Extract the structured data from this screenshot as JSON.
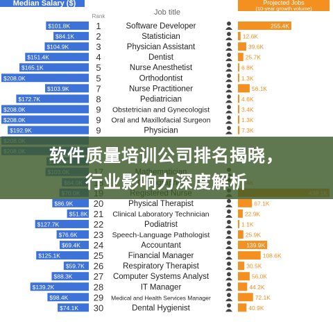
{
  "chart_data": {
    "type": "bar",
    "left_header": "Median Salary ($)",
    "rank_header": "Rank",
    "title_header": "Job title",
    "right_header_line1": "Projected Jobs",
    "right_header_line2": "(10-year growth volume)",
    "colors": {
      "salary": "#3d72d9",
      "jobs": "#f39020",
      "rank_text": "#333333"
    },
    "rows": [
      {
        "rank": "1",
        "title": "Software Developer",
        "salary": 101.8,
        "salary_label": "$101.8K",
        "jobs": 255.4,
        "jobs_label": "255.4K",
        "icon": "laptop-person-icon"
      },
      {
        "rank": "2",
        "title": "Statistician",
        "salary": 84.1,
        "salary_label": "$84.1K",
        "jobs": 12.6,
        "jobs_label": "12.6K",
        "icon": "person-icon"
      },
      {
        "rank": "3",
        "title": "Physician Assistant",
        "salary": 104.9,
        "salary_label": "$104.9K",
        "jobs": 39.6,
        "jobs_label": "39.6K",
        "icon": "doctor-icon"
      },
      {
        "rank": "4",
        "title": "Dentist",
        "salary": 151.4,
        "salary_label": "$151.4K",
        "jobs": 25.7,
        "jobs_label": "25.7K",
        "icon": "tooth-icon"
      },
      {
        "rank": "5",
        "title": "Nurse Anesthetist",
        "salary": 165.1,
        "salary_label": "$165.1K",
        "jobs": 6.8,
        "jobs_label": "6.8K",
        "icon": "nurse-icon"
      },
      {
        "rank": "5",
        "title": "Orthodontist",
        "salary": 208.0,
        "salary_label": "$208.0K",
        "jobs": 1.3,
        "jobs_label": "1.3K",
        "icon": "tooth-icon"
      },
      {
        "rank": "7",
        "title": "Nurse Practitioner",
        "salary": 103.9,
        "salary_label": "$103.9K",
        "jobs": 56.1,
        "jobs_label": "56.1K",
        "icon": "nurse-icon"
      },
      {
        "rank": "8",
        "title": "Pediatrician",
        "salary": 172.7,
        "salary_label": "$172.7K",
        "jobs": 4.6,
        "jobs_label": "4.6K",
        "icon": "doctor-icon"
      },
      {
        "rank": "9",
        "title": "Obstetrician and Gynecologist",
        "salary": 208.0,
        "salary_label": "$208.0K",
        "jobs": 3.4,
        "jobs_label": "3.4K",
        "icon": "doctor-icon"
      },
      {
        "rank": "9",
        "title": "Oral and Maxillofacial Surgeon",
        "salary": 208.0,
        "salary_label": "$208.0K",
        "jobs": 1.3,
        "jobs_label": "1.3K",
        "icon": "surgeon-icon"
      },
      {
        "rank": "9",
        "title": "Physician",
        "salary": 192.9,
        "salary_label": "$192.9K",
        "jobs": 7.3,
        "jobs_label": "7.3K",
        "icon": "doctor-icon"
      },
      {
        "rank": "",
        "title": "",
        "salary": 208.0,
        "salary_label": "$208.0K",
        "jobs": 0,
        "jobs_label": "",
        "icon": ""
      },
      {
        "rank": "",
        "title": "",
        "salary": 208.0,
        "salary_label": "$208.0K",
        "jobs": 0,
        "jobs_label": "",
        "icon": ""
      },
      {
        "rank": "",
        "title": "",
        "salary": 100.6,
        "salary_label": "$100.6K",
        "jobs": 0,
        "jobs_label": "",
        "icon": ""
      },
      {
        "rank": "17",
        "title": "Mathematician",
        "salary": 103.0,
        "salary_label": "$103.0K",
        "jobs": 0,
        "jobs_label": "",
        "icon": "person-icon"
      },
      {
        "rank": "18",
        "title": "Cartographer",
        "salary": 64.0,
        "salary_label": "$64.0K",
        "jobs": 2.4,
        "jobs_label": "2.4K",
        "icon": "map-icon"
      },
      {
        "rank": "19",
        "title": "Registered Nurse",
        "salary": 70.0,
        "salary_label": "$70.0K",
        "jobs": 438.1,
        "jobs_label": "438.1K",
        "icon": "nurse-icon"
      },
      {
        "rank": "20",
        "title": "Physical Therapist",
        "salary": 86.9,
        "salary_label": "$86.9K",
        "jobs": 67.1,
        "jobs_label": "67.1K",
        "icon": "person-icon"
      },
      {
        "rank": "21",
        "title": "Clinical Laboratory Technician",
        "salary": 51.8,
        "salary_label": "$51.8K",
        "jobs": 22.9,
        "jobs_label": "22.9K",
        "icon": "microscope-icon"
      },
      {
        "rank": "22",
        "title": "Podiatrist",
        "salary": 127.7,
        "salary_label": "$127.7K",
        "jobs": 1.1,
        "jobs_label": "1.1K",
        "icon": "doctor-icon"
      },
      {
        "rank": "23",
        "title": "Speech-Language Pathologist",
        "salary": 76.6,
        "salary_label": "$76.6K",
        "jobs": 25.9,
        "jobs_label": "25.9K",
        "icon": "person-icon"
      },
      {
        "rank": "24",
        "title": "Accountant",
        "salary": 69.4,
        "salary_label": "$69.4K",
        "jobs": 139.9,
        "jobs_label": "139.9K",
        "icon": "person-icon"
      },
      {
        "rank": "25",
        "title": "Financial Manager",
        "salary": 125.1,
        "salary_label": "$125.1K",
        "jobs": 108.6,
        "jobs_label": "108.6K",
        "icon": "person-icon"
      },
      {
        "rank": "26",
        "title": "Respiratory Therapist",
        "salary": 59.7,
        "salary_label": "$59.7K",
        "jobs": 30.5,
        "jobs_label": "30.5K",
        "icon": "person-icon"
      },
      {
        "rank": "27",
        "title": "Computer Systems Analyst",
        "salary": 88.3,
        "salary_label": "$88.3K",
        "jobs": 56.0,
        "jobs_label": "56.0K",
        "icon": "laptop-person-icon"
      },
      {
        "rank": "28",
        "title": "IT Manager",
        "salary": 139.2,
        "salary_label": "$139.2K",
        "jobs": 44.2,
        "jobs_label": "44.2K",
        "icon": "laptop-person-icon"
      },
      {
        "rank": "29",
        "title": "Medical and Health Services Manager",
        "salary": 98.4,
        "salary_label": "$98.4K",
        "jobs": 72.1,
        "jobs_label": "72.1K",
        "icon": "person-icon"
      },
      {
        "rank": "30",
        "title": "Dental Hygienist",
        "salary": 74.1,
        "salary_label": "$74.1K",
        "jobs": 40.9,
        "jobs_label": "40.9K",
        "icon": "tooth-icon"
      }
    ],
    "salary_max": 208.0,
    "jobs_max": 438.1
  },
  "overlay": {
    "line1": "软件质量培训公司排名揭晓，",
    "line2": "行业影响力深度解析"
  }
}
